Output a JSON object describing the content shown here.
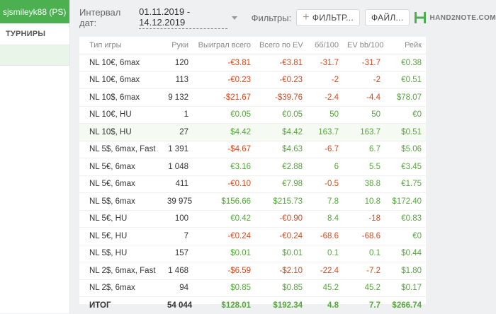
{
  "sidebar": {
    "account_name": "sjsmileyk88 (PS)",
    "nav_items": [
      "ТУРНИРЫ"
    ]
  },
  "toolbar": {
    "interval_label": "Интервал дат:",
    "date_range": "01.11.2019 - 14.12.2019",
    "filters_label": "Фильтры:",
    "filter_button": "ФИЛЬТР...",
    "file_button": "ФАЙЛ...",
    "logo_text": "HAND2NOTE.COM"
  },
  "colors": {
    "accent": "#4caf50",
    "positive": "#54a83a",
    "negative": "#d9481c"
  },
  "table": {
    "headers": [
      "Тип игры",
      "Руки",
      "Выиграл всего",
      "Всего по EV",
      "бб/100",
      "EV bb/100",
      "Рейк"
    ],
    "rows": [
      [
        "NL 10€, 6max",
        "120",
        "-€3.81",
        "-€3.81",
        "-31.7",
        "-31.7",
        "€0.38"
      ],
      [
        "NL 10€, 6max",
        "113",
        "-€0.23",
        "-€0.23",
        "-2",
        "-2",
        "€0.51"
      ],
      [
        "NL 10$, 6max",
        "9 132",
        "-$21.67",
        "-$39.76",
        "-2.4",
        "-4.4",
        "$78.07"
      ],
      [
        "NL 10€, HU",
        "1",
        "€0.05",
        "€0.05",
        "50",
        "50",
        "€0"
      ],
      [
        "NL 10$, HU",
        "27",
        "$4.42",
        "$4.42",
        "163.7",
        "163.7",
        "$0.51"
      ],
      [
        "NL 5$, 6max, Fast",
        "1 391",
        "-$4.67",
        "$4.63",
        "-6.7",
        "6.7",
        "$5.06"
      ],
      [
        "NL 5€, 6max",
        "1 048",
        "€3.16",
        "€2.88",
        "6",
        "5.5",
        "€3.45"
      ],
      [
        "NL 5€, 6max",
        "411",
        "-€0.10",
        "€7.98",
        "-0.5",
        "38.8",
        "€1.75"
      ],
      [
        "NL 5$, 6max",
        "39 975",
        "$156.66",
        "$215.73",
        "7.8",
        "10.8",
        "$172.40"
      ],
      [
        "NL 5€, HU",
        "100",
        "€0.42",
        "-€0.90",
        "8.4",
        "-18",
        "€0.83"
      ],
      [
        "NL 5€, HU",
        "7",
        "-€0.24",
        "-€0.24",
        "-68.6",
        "-68.6",
        "€0"
      ],
      [
        "NL 5$, HU",
        "157",
        "$0.01",
        "$0.01",
        "0.1",
        "0.1",
        "$0.44"
      ],
      [
        "NL 2$, 6max, Fast",
        "1 468",
        "-$6.59",
        "-$2.10",
        "-22.4",
        "-7.2",
        "$1.80"
      ],
      [
        "NL 2$, 6max",
        "94",
        "$0.85",
        "$0.85",
        "45.2",
        "45.2",
        "$0.17"
      ]
    ],
    "total": [
      "ИТОГ",
      "54 044",
      "$128.01",
      "$192.34",
      "4.8",
      "7.7",
      "$266.74"
    ]
  }
}
